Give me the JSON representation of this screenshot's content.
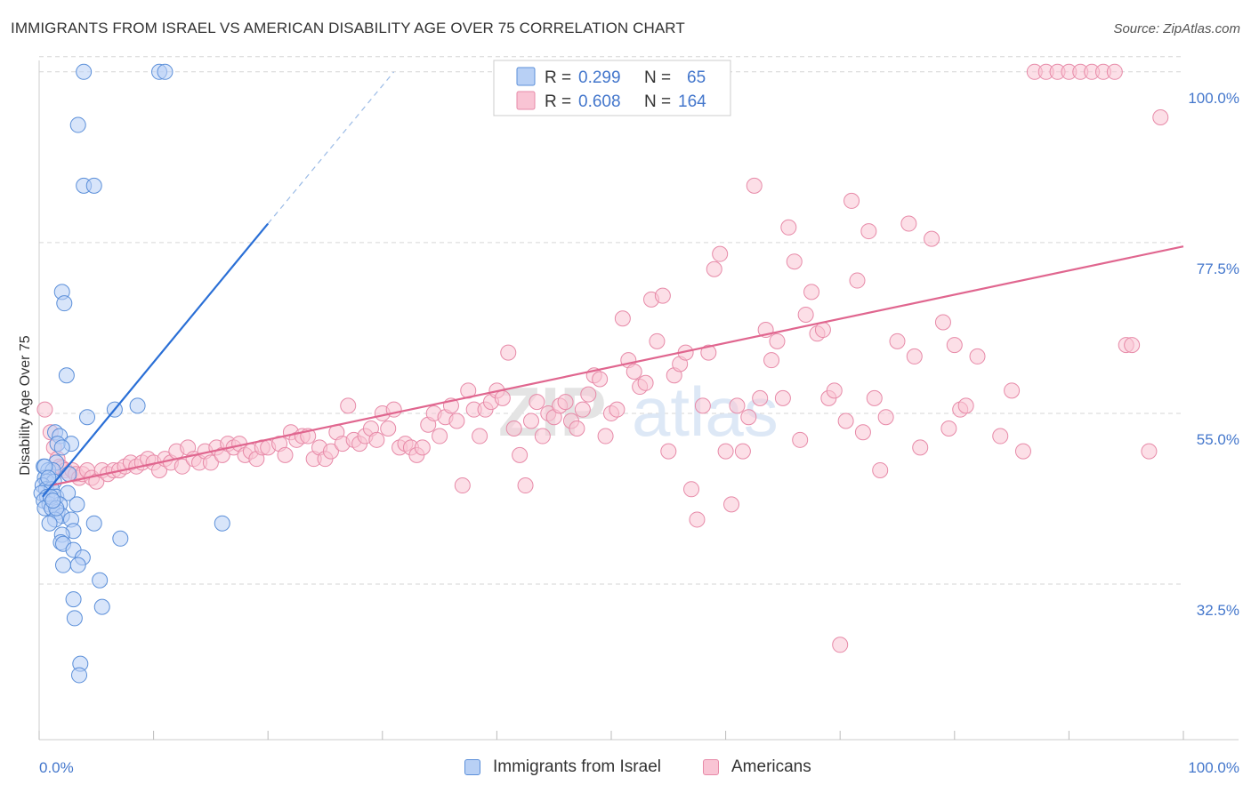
{
  "header": {
    "title": "IMMIGRANTS FROM ISRAEL VS AMERICAN DISABILITY AGE OVER 75 CORRELATION CHART",
    "source": "Source: ZipAtlas.com"
  },
  "watermark": {
    "zip": "ZIP",
    "atlas": "atlas"
  },
  "colors": {
    "israel_fill": "#b8d0f5",
    "israel_stroke": "#5b8fd9",
    "israel_line": "#2a6fd6",
    "americans_fill": "#f9c4d4",
    "americans_stroke": "#e78aa8",
    "americans_line": "#e0668f",
    "tick_label": "#4477cc",
    "grid": "#d6d6d6"
  },
  "stats_box": {
    "rows": [
      {
        "r_label": "R =",
        "r_value": "0.299",
        "n_label": "N =",
        "n_value": "65"
      },
      {
        "r_label": "R =",
        "r_value": "0.608",
        "n_label": "N =",
        "n_value": "164"
      }
    ]
  },
  "legend": {
    "israel": "Immigrants from Israel",
    "americans": "Americans"
  },
  "chart_data": {
    "type": "scatter",
    "title": "IMMIGRANTS FROM ISRAEL VS AMERICAN DISABILITY AGE OVER 75 CORRELATION CHART",
    "xlabel": "",
    "ylabel": "Disability Age Over 75",
    "xlim": [
      0,
      100
    ],
    "ylim": [
      12,
      101.5
    ],
    "x_tick_labels": [
      "0.0%",
      "100.0%"
    ],
    "y_ticks": [
      32.5,
      55.0,
      77.5,
      100.0
    ],
    "y_tick_labels": [
      "32.5%",
      "55.0%",
      "77.5%",
      "100.0%"
    ],
    "grid": "horizontal dashed",
    "legend_position": "bottom-center",
    "series": [
      {
        "name": "Immigrants from Israel",
        "r": 0.299,
        "n": 65,
        "trend": {
          "x": [
            0.3,
            20
          ],
          "y": [
            44,
            80
          ]
        },
        "trend_extension": {
          "x": [
            20,
            31
          ],
          "y": [
            80,
            100
          ]
        },
        "points": [
          [
            3.9,
            100
          ],
          [
            10.5,
            100
          ],
          [
            11,
            100
          ],
          [
            3.4,
            93
          ],
          [
            3.9,
            85
          ],
          [
            4.8,
            85
          ],
          [
            2,
            71
          ],
          [
            2.2,
            69.5
          ],
          [
            2.4,
            60
          ],
          [
            4.2,
            54.5
          ],
          [
            6.6,
            55.5
          ],
          [
            8.6,
            56
          ],
          [
            1.4,
            52.5
          ],
          [
            1.8,
            52
          ],
          [
            2.8,
            51
          ],
          [
            1.6,
            51
          ],
          [
            2,
            50.5
          ],
          [
            1.5,
            48.5
          ],
          [
            0.4,
            48
          ],
          [
            0.8,
            47.5
          ],
          [
            1.2,
            47.5
          ],
          [
            2.6,
            47
          ],
          [
            0.5,
            46.5
          ],
          [
            0.7,
            46
          ],
          [
            1.3,
            46
          ],
          [
            0.3,
            45.5
          ],
          [
            0.6,
            45
          ],
          [
            1.1,
            45
          ],
          [
            0.2,
            44.5
          ],
          [
            0.7,
            44
          ],
          [
            1.5,
            44
          ],
          [
            2.5,
            44.5
          ],
          [
            0.4,
            43.5
          ],
          [
            0.9,
            43
          ],
          [
            1.8,
            43
          ],
          [
            3.3,
            43
          ],
          [
            0.5,
            42.5
          ],
          [
            1.1,
            42.5
          ],
          [
            1.6,
            42
          ],
          [
            2,
            41.5
          ],
          [
            2.8,
            41
          ],
          [
            1.4,
            41
          ],
          [
            0.9,
            40.5
          ],
          [
            4.8,
            40.5
          ],
          [
            16,
            40.5
          ],
          [
            3,
            39.5
          ],
          [
            2,
            39
          ],
          [
            1.9,
            38
          ],
          [
            7.1,
            38.5
          ],
          [
            2.1,
            37.8
          ],
          [
            3,
            37
          ],
          [
            3.8,
            36
          ],
          [
            2.1,
            35
          ],
          [
            3.4,
            35
          ],
          [
            5.3,
            33
          ],
          [
            3,
            30.5
          ],
          [
            5.5,
            29.5
          ],
          [
            3.1,
            28
          ],
          [
            3.6,
            22
          ],
          [
            3.5,
            20.5
          ],
          [
            0.5,
            48
          ],
          [
            1,
            44
          ],
          [
            1.5,
            42.5
          ],
          [
            0.8,
            46.5
          ],
          [
            1.2,
            43.5
          ]
        ]
      },
      {
        "name": "Americans",
        "r": 0.608,
        "n": 164,
        "trend": {
          "x": [
            1,
            100
          ],
          "y": [
            45.5,
            77
          ]
        },
        "points": [
          [
            0.5,
            55.5
          ],
          [
            1,
            52.5
          ],
          [
            1.3,
            50.5
          ],
          [
            1.6,
            49
          ],
          [
            1.8,
            48
          ],
          [
            2,
            47.8
          ],
          [
            2.3,
            47.5
          ],
          [
            2.6,
            47
          ],
          [
            2.9,
            47.5
          ],
          [
            3.2,
            47
          ],
          [
            3.5,
            46.5
          ],
          [
            3.8,
            47
          ],
          [
            4.2,
            47.5
          ],
          [
            4.6,
            46.5
          ],
          [
            5,
            46
          ],
          [
            5.5,
            47.5
          ],
          [
            6,
            47
          ],
          [
            6.5,
            47.5
          ],
          [
            7,
            47.5
          ],
          [
            7.5,
            48
          ],
          [
            8,
            48.5
          ],
          [
            8.5,
            48
          ],
          [
            9,
            48.5
          ],
          [
            9.5,
            49
          ],
          [
            10,
            48.5
          ],
          [
            10.5,
            47.5
          ],
          [
            11,
            49
          ],
          [
            11.5,
            48.5
          ],
          [
            12,
            50
          ],
          [
            12.5,
            48
          ],
          [
            13,
            50.5
          ],
          [
            13.5,
            49
          ],
          [
            14,
            48.5
          ],
          [
            14.5,
            50
          ],
          [
            15,
            48.5
          ],
          [
            15.5,
            50.5
          ],
          [
            16,
            49.5
          ],
          [
            16.5,
            51
          ],
          [
            17,
            50.5
          ],
          [
            17.5,
            51
          ],
          [
            18,
            49.5
          ],
          [
            18.5,
            50
          ],
          [
            19,
            49
          ],
          [
            19.5,
            50.5
          ],
          [
            20,
            50.5
          ],
          [
            21,
            51
          ],
          [
            21.5,
            49.5
          ],
          [
            22,
            52.5
          ],
          [
            22.5,
            51.5
          ],
          [
            23,
            52
          ],
          [
            23.5,
            52
          ],
          [
            24,
            49
          ],
          [
            24.5,
            50.5
          ],
          [
            25,
            49
          ],
          [
            25.5,
            50
          ],
          [
            26,
            52.5
          ],
          [
            26.5,
            51
          ],
          [
            27,
            56
          ],
          [
            27.5,
            51.5
          ],
          [
            28,
            51
          ],
          [
            28.5,
            52
          ],
          [
            29,
            53
          ],
          [
            29.5,
            51.5
          ],
          [
            30,
            55
          ],
          [
            30.5,
            53
          ],
          [
            31,
            55.5
          ],
          [
            31.5,
            50.5
          ],
          [
            32,
            51
          ],
          [
            32.5,
            50.5
          ],
          [
            33,
            49.5
          ],
          [
            33.5,
            50.5
          ],
          [
            34,
            53.5
          ],
          [
            34.5,
            55
          ],
          [
            35,
            52
          ],
          [
            35.5,
            54.5
          ],
          [
            36,
            56
          ],
          [
            36.5,
            54
          ],
          [
            37,
            45.5
          ],
          [
            37.5,
            58
          ],
          [
            38,
            55.5
          ],
          [
            38.5,
            52
          ],
          [
            39,
            55.5
          ],
          [
            39.5,
            56.5
          ],
          [
            40,
            58
          ],
          [
            40.5,
            57
          ],
          [
            41,
            63
          ],
          [
            41.5,
            53
          ],
          [
            42,
            49.5
          ],
          [
            42.5,
            45.5
          ],
          [
            43,
            54
          ],
          [
            43.5,
            56.5
          ],
          [
            44,
            52
          ],
          [
            44.5,
            55
          ],
          [
            45,
            54.5
          ],
          [
            45.5,
            56
          ],
          [
            46,
            56.5
          ],
          [
            46.5,
            54
          ],
          [
            47,
            53
          ],
          [
            47.5,
            55.5
          ],
          [
            48,
            57.5
          ],
          [
            48.5,
            60
          ],
          [
            49,
            59.5
          ],
          [
            49.5,
            52
          ],
          [
            50,
            55
          ],
          [
            50.5,
            55.5
          ],
          [
            51,
            67.5
          ],
          [
            51.5,
            62
          ],
          [
            52,
            60.5
          ],
          [
            52.5,
            58.5
          ],
          [
            53,
            59
          ],
          [
            53.5,
            70
          ],
          [
            54,
            64.5
          ],
          [
            54.5,
            70.5
          ],
          [
            55,
            50
          ],
          [
            55.5,
            60
          ],
          [
            56,
            61.5
          ],
          [
            56.5,
            63
          ],
          [
            57,
            45
          ],
          [
            57.5,
            41
          ],
          [
            58,
            56
          ],
          [
            58.5,
            63
          ],
          [
            59,
            74
          ],
          [
            59.5,
            76
          ],
          [
            60,
            50
          ],
          [
            60.5,
            43
          ],
          [
            61,
            56
          ],
          [
            61.5,
            50
          ],
          [
            62,
            54.5
          ],
          [
            62.5,
            85
          ],
          [
            63,
            57
          ],
          [
            63.5,
            66
          ],
          [
            64,
            62
          ],
          [
            64.5,
            64.5
          ],
          [
            65,
            57
          ],
          [
            65.5,
            79.5
          ],
          [
            66,
            75
          ],
          [
            66.5,
            51.5
          ],
          [
            67,
            68
          ],
          [
            67.5,
            71
          ],
          [
            68,
            65.5
          ],
          [
            68.5,
            66
          ],
          [
            69,
            57
          ],
          [
            69.5,
            58
          ],
          [
            70,
            24.5
          ],
          [
            70.5,
            54
          ],
          [
            71,
            83
          ],
          [
            71.5,
            72.5
          ],
          [
            72,
            52.5
          ],
          [
            72.5,
            79
          ],
          [
            73,
            57
          ],
          [
            73.5,
            47.5
          ],
          [
            74,
            54.5
          ],
          [
            75,
            64.5
          ],
          [
            76,
            80
          ],
          [
            76.5,
            62.5
          ],
          [
            77,
            50.5
          ],
          [
            78,
            78
          ],
          [
            79,
            67
          ],
          [
            79.5,
            53
          ],
          [
            80,
            64
          ],
          [
            80.5,
            55.5
          ],
          [
            81,
            56
          ],
          [
            82,
            62.5
          ],
          [
            84,
            52
          ],
          [
            85,
            58
          ],
          [
            86,
            50
          ],
          [
            87,
            100
          ],
          [
            88,
            100
          ],
          [
            89,
            100
          ],
          [
            90,
            100
          ],
          [
            91,
            100
          ],
          [
            92,
            100
          ],
          [
            93,
            100
          ],
          [
            94,
            100
          ],
          [
            95,
            64
          ],
          [
            95.5,
            64
          ],
          [
            97,
            50
          ],
          [
            98,
            94
          ]
        ]
      }
    ]
  }
}
